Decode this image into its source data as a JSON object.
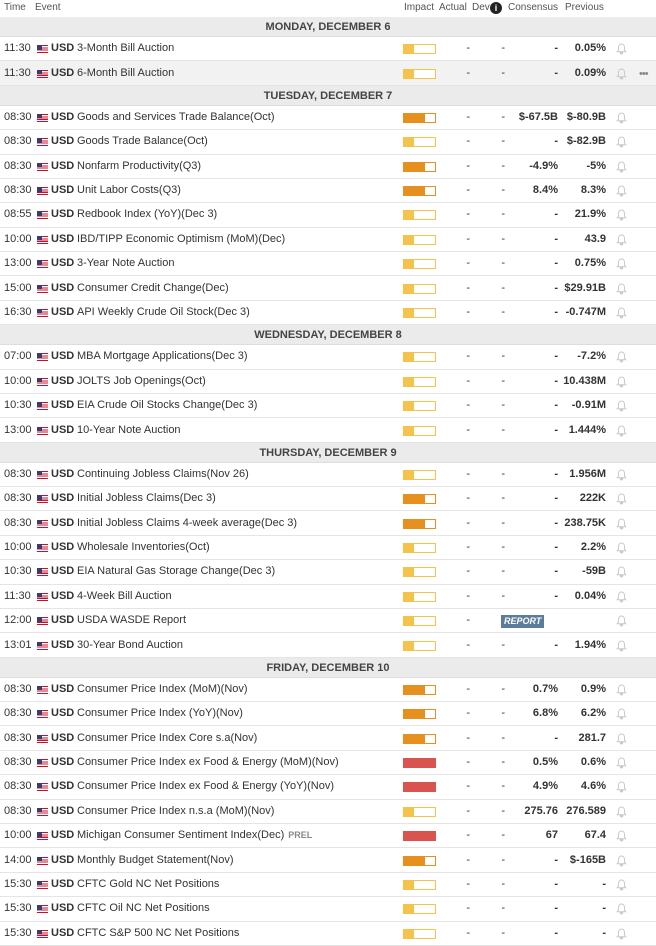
{
  "header": {
    "columns": [
      "Time",
      "Event",
      "Impact",
      "Actual",
      "Dev",
      "Consensus",
      "Previous"
    ]
  },
  "impact_colors": [
    "#f3c34c",
    "#e5901f",
    "#d9534f"
  ],
  "days": [
    {
      "title": "MONDAY, DECEMBER 6",
      "rows": [
        {
          "time": "11:30",
          "cur": "USD",
          "event": "3-Month Bill Auction",
          "impact": 1,
          "actual": "-",
          "dev": "-",
          "cons": "-",
          "prev": "0.05%"
        },
        {
          "time": "11:30",
          "cur": "USD",
          "event": "6-Month Bill Auction",
          "impact": 1,
          "actual": "-",
          "dev": "-",
          "cons": "-",
          "prev": "0.09%"
        }
      ]
    },
    {
      "title": "TUESDAY, DECEMBER 7",
      "rows": [
        {
          "time": "08:30",
          "cur": "USD",
          "event": "Goods and Services Trade Balance(Oct)",
          "impact": 2,
          "actual": "-",
          "dev": "-",
          "cons": "$-67.5B",
          "prev": "$-80.9B"
        },
        {
          "time": "08:30",
          "cur": "USD",
          "event": "Goods Trade Balance(Oct)",
          "impact": 1,
          "actual": "-",
          "dev": "-",
          "cons": "-",
          "prev": "$-82.9B"
        },
        {
          "time": "08:30",
          "cur": "USD",
          "event": "Nonfarm Productivity(Q3)",
          "impact": 2,
          "actual": "-",
          "dev": "-",
          "cons": "-4.9%",
          "prev": "-5%"
        },
        {
          "time": "08:30",
          "cur": "USD",
          "event": "Unit Labor Costs(Q3)",
          "impact": 2,
          "actual": "-",
          "dev": "-",
          "cons": "8.4%",
          "prev": "8.3%"
        },
        {
          "time": "08:55",
          "cur": "USD",
          "event": "Redbook Index (YoY)(Dec 3)",
          "impact": 1,
          "actual": "-",
          "dev": "-",
          "cons": "-",
          "prev": "21.9%"
        },
        {
          "time": "10:00",
          "cur": "USD",
          "event": "IBD/TIPP Economic Optimism (MoM)(Dec)",
          "impact": 1,
          "actual": "-",
          "dev": "-",
          "cons": "-",
          "prev": "43.9"
        },
        {
          "time": "13:00",
          "cur": "USD",
          "event": "3-Year Note Auction",
          "impact": 1,
          "actual": "-",
          "dev": "-",
          "cons": "-",
          "prev": "0.75%"
        },
        {
          "time": "15:00",
          "cur": "USD",
          "event": "Consumer Credit Change(Dec)",
          "impact": 1,
          "actual": "-",
          "dev": "-",
          "cons": "-",
          "prev": "$29.91B"
        },
        {
          "time": "16:30",
          "cur": "USD",
          "event": "API Weekly Crude Oil Stock(Dec 3)",
          "impact": 1,
          "actual": "-",
          "dev": "-",
          "cons": "-",
          "prev": "-0.747M"
        }
      ]
    },
    {
      "title": "WEDNESDAY, DECEMBER 8",
      "rows": [
        {
          "time": "07:00",
          "cur": "USD",
          "event": "MBA Mortgage Applications(Dec 3)",
          "impact": 1,
          "actual": "-",
          "dev": "-",
          "cons": "-",
          "prev": "-7.2%"
        },
        {
          "time": "10:00",
          "cur": "USD",
          "event": "JOLTS Job Openings(Oct)",
          "impact": 1,
          "actual": "-",
          "dev": "-",
          "cons": "-",
          "prev": "10.438M"
        },
        {
          "time": "10:30",
          "cur": "USD",
          "event": "EIA Crude Oil Stocks Change(Dec 3)",
          "impact": 1,
          "actual": "-",
          "dev": "-",
          "cons": "-",
          "prev": "-0.91M"
        },
        {
          "time": "13:00",
          "cur": "USD",
          "event": "10-Year Note Auction",
          "impact": 1,
          "actual": "-",
          "dev": "-",
          "cons": "-",
          "prev": "1.444%"
        }
      ]
    },
    {
      "title": "THURSDAY, DECEMBER 9",
      "rows": [
        {
          "time": "08:30",
          "cur": "USD",
          "event": "Continuing Jobless Claims(Nov 26)",
          "impact": 1,
          "actual": "-",
          "dev": "-",
          "cons": "-",
          "prev": "1.956M"
        },
        {
          "time": "08:30",
          "cur": "USD",
          "event": "Initial Jobless Claims(Dec 3)",
          "impact": 2,
          "actual": "-",
          "dev": "-",
          "cons": "-",
          "prev": "222K"
        },
        {
          "time": "08:30",
          "cur": "USD",
          "event": "Initial Jobless Claims 4-week average(Dec 3)",
          "impact": 2,
          "actual": "-",
          "dev": "-",
          "cons": "-",
          "prev": "238.75K"
        },
        {
          "time": "10:00",
          "cur": "USD",
          "event": "Wholesale Inventories(Oct)",
          "impact": 1,
          "actual": "-",
          "dev": "-",
          "cons": "-",
          "prev": "2.2%"
        },
        {
          "time": "10:30",
          "cur": "USD",
          "event": "EIA Natural Gas Storage Change(Dec 3)",
          "impact": 1,
          "actual": "-",
          "dev": "-",
          "cons": "-",
          "prev": "-59B"
        },
        {
          "time": "11:30",
          "cur": "USD",
          "event": "4-Week Bill Auction",
          "impact": 1,
          "actual": "-",
          "dev": "-",
          "cons": "-",
          "prev": "0.04%"
        },
        {
          "time": "12:00",
          "cur": "USD",
          "event": "USDA WASDE Report",
          "impact": 1,
          "actual": "-",
          "badge": "REPORT"
        },
        {
          "time": "13:01",
          "cur": "USD",
          "event": "30-Year Bond Auction",
          "impact": 1,
          "actual": "-",
          "dev": "-",
          "cons": "-",
          "prev": "1.94%"
        }
      ]
    },
    {
      "title": "FRIDAY, DECEMBER 10",
      "rows": [
        {
          "time": "08:30",
          "cur": "USD",
          "event": "Consumer Price Index (MoM)(Nov)",
          "impact": 2,
          "actual": "-",
          "dev": "-",
          "cons": "0.7%",
          "prev": "0.9%"
        },
        {
          "time": "08:30",
          "cur": "USD",
          "event": "Consumer Price Index (YoY)(Nov)",
          "impact": 2,
          "actual": "-",
          "dev": "-",
          "cons": "6.8%",
          "prev": "6.2%"
        },
        {
          "time": "08:30",
          "cur": "USD",
          "event": "Consumer Price Index Core s.a(Nov)",
          "impact": 2,
          "actual": "-",
          "dev": "-",
          "cons": "-",
          "prev": "281.7"
        },
        {
          "time": "08:30",
          "cur": "USD",
          "event": "Consumer Price Index ex Food & Energy (MoM)(Nov)",
          "impact": 3,
          "actual": "-",
          "dev": "-",
          "cons": "0.5%",
          "prev": "0.6%"
        },
        {
          "time": "08:30",
          "cur": "USD",
          "event": "Consumer Price Index ex Food & Energy (YoY)(Nov)",
          "impact": 3,
          "actual": "-",
          "dev": "-",
          "cons": "4.9%",
          "prev": "4.6%"
        },
        {
          "time": "08:30",
          "cur": "USD",
          "event": "Consumer Price Index n.s.a (MoM)(Nov)",
          "impact": 1,
          "actual": "-",
          "dev": "-",
          "cons": "275.76",
          "prev": "276.589"
        },
        {
          "time": "10:00",
          "cur": "USD",
          "event": "Michigan Consumer Sentiment Index(Dec)",
          "tag": "PREL",
          "impact": 3,
          "actual": "-",
          "dev": "-",
          "cons": "67",
          "prev": "67.4"
        },
        {
          "time": "14:00",
          "cur": "USD",
          "event": "Monthly Budget Statement(Nov)",
          "impact": 2,
          "actual": "-",
          "dev": "-",
          "cons": "-",
          "prev": "$-165B"
        },
        {
          "time": "15:30",
          "cur": "USD",
          "event": "CFTC Gold NC Net Positions",
          "impact": 1,
          "actual": "-",
          "dev": "-",
          "cons": "-",
          "prev": "-"
        },
        {
          "time": "15:30",
          "cur": "USD",
          "event": "CFTC Oil NC Net Positions",
          "impact": 1,
          "actual": "-",
          "dev": "-",
          "cons": "-",
          "prev": "-"
        },
        {
          "time": "15:30",
          "cur": "USD",
          "event": "CFTC S&P 500 NC Net Positions",
          "impact": 1,
          "actual": "-",
          "dev": "-",
          "cons": "-",
          "prev": "-"
        }
      ]
    }
  ]
}
